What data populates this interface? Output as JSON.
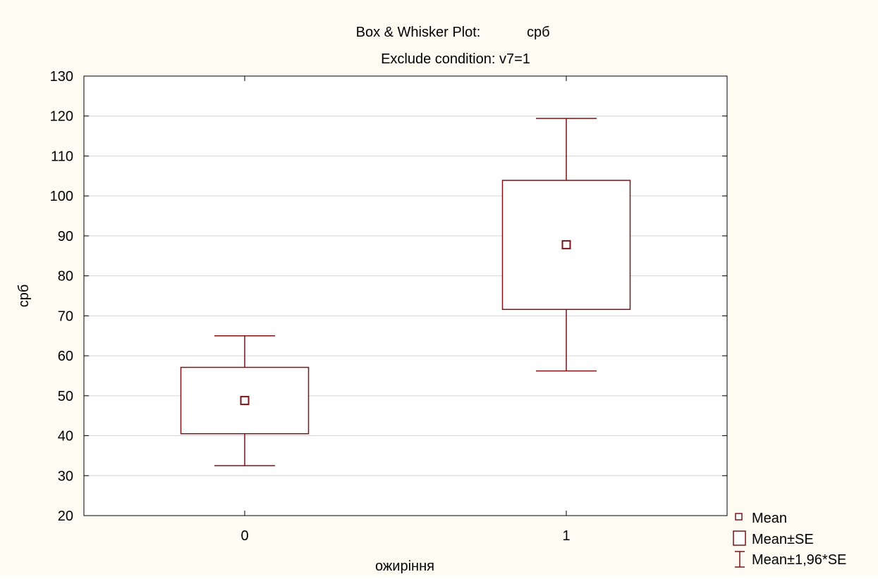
{
  "chart_data": {
    "type": "box",
    "title": "Box & Whisker Plot:",
    "title_variable": "срб",
    "subtitle": "Exclude condition: v7=1",
    "xlabel": "ожиріння",
    "ylabel": "срб",
    "ylim": [
      20,
      130
    ],
    "yticks": [
      20,
      30,
      40,
      50,
      60,
      70,
      80,
      90,
      100,
      110,
      120,
      130
    ],
    "grid": true,
    "legend_position": "bottom-right",
    "categories": [
      "0",
      "1"
    ],
    "groups": [
      {
        "category": "0",
        "mean": 48.8,
        "se_low": 40.5,
        "se_high": 57.1,
        "ci_low": 32.5,
        "ci_high": 65.0
      },
      {
        "category": "1",
        "mean": 87.8,
        "se_low": 71.6,
        "se_high": 103.9,
        "ci_low": 56.2,
        "ci_high": 119.4
      }
    ],
    "legend": [
      "Mean",
      "Mean±SE",
      "Mean±1,96*SE"
    ],
    "colors": {
      "background": "#fdfbf2",
      "plot_area": "#ffffff",
      "series": "#7b1416",
      "grid": "#d4d4d4",
      "axis": "#000000"
    }
  }
}
